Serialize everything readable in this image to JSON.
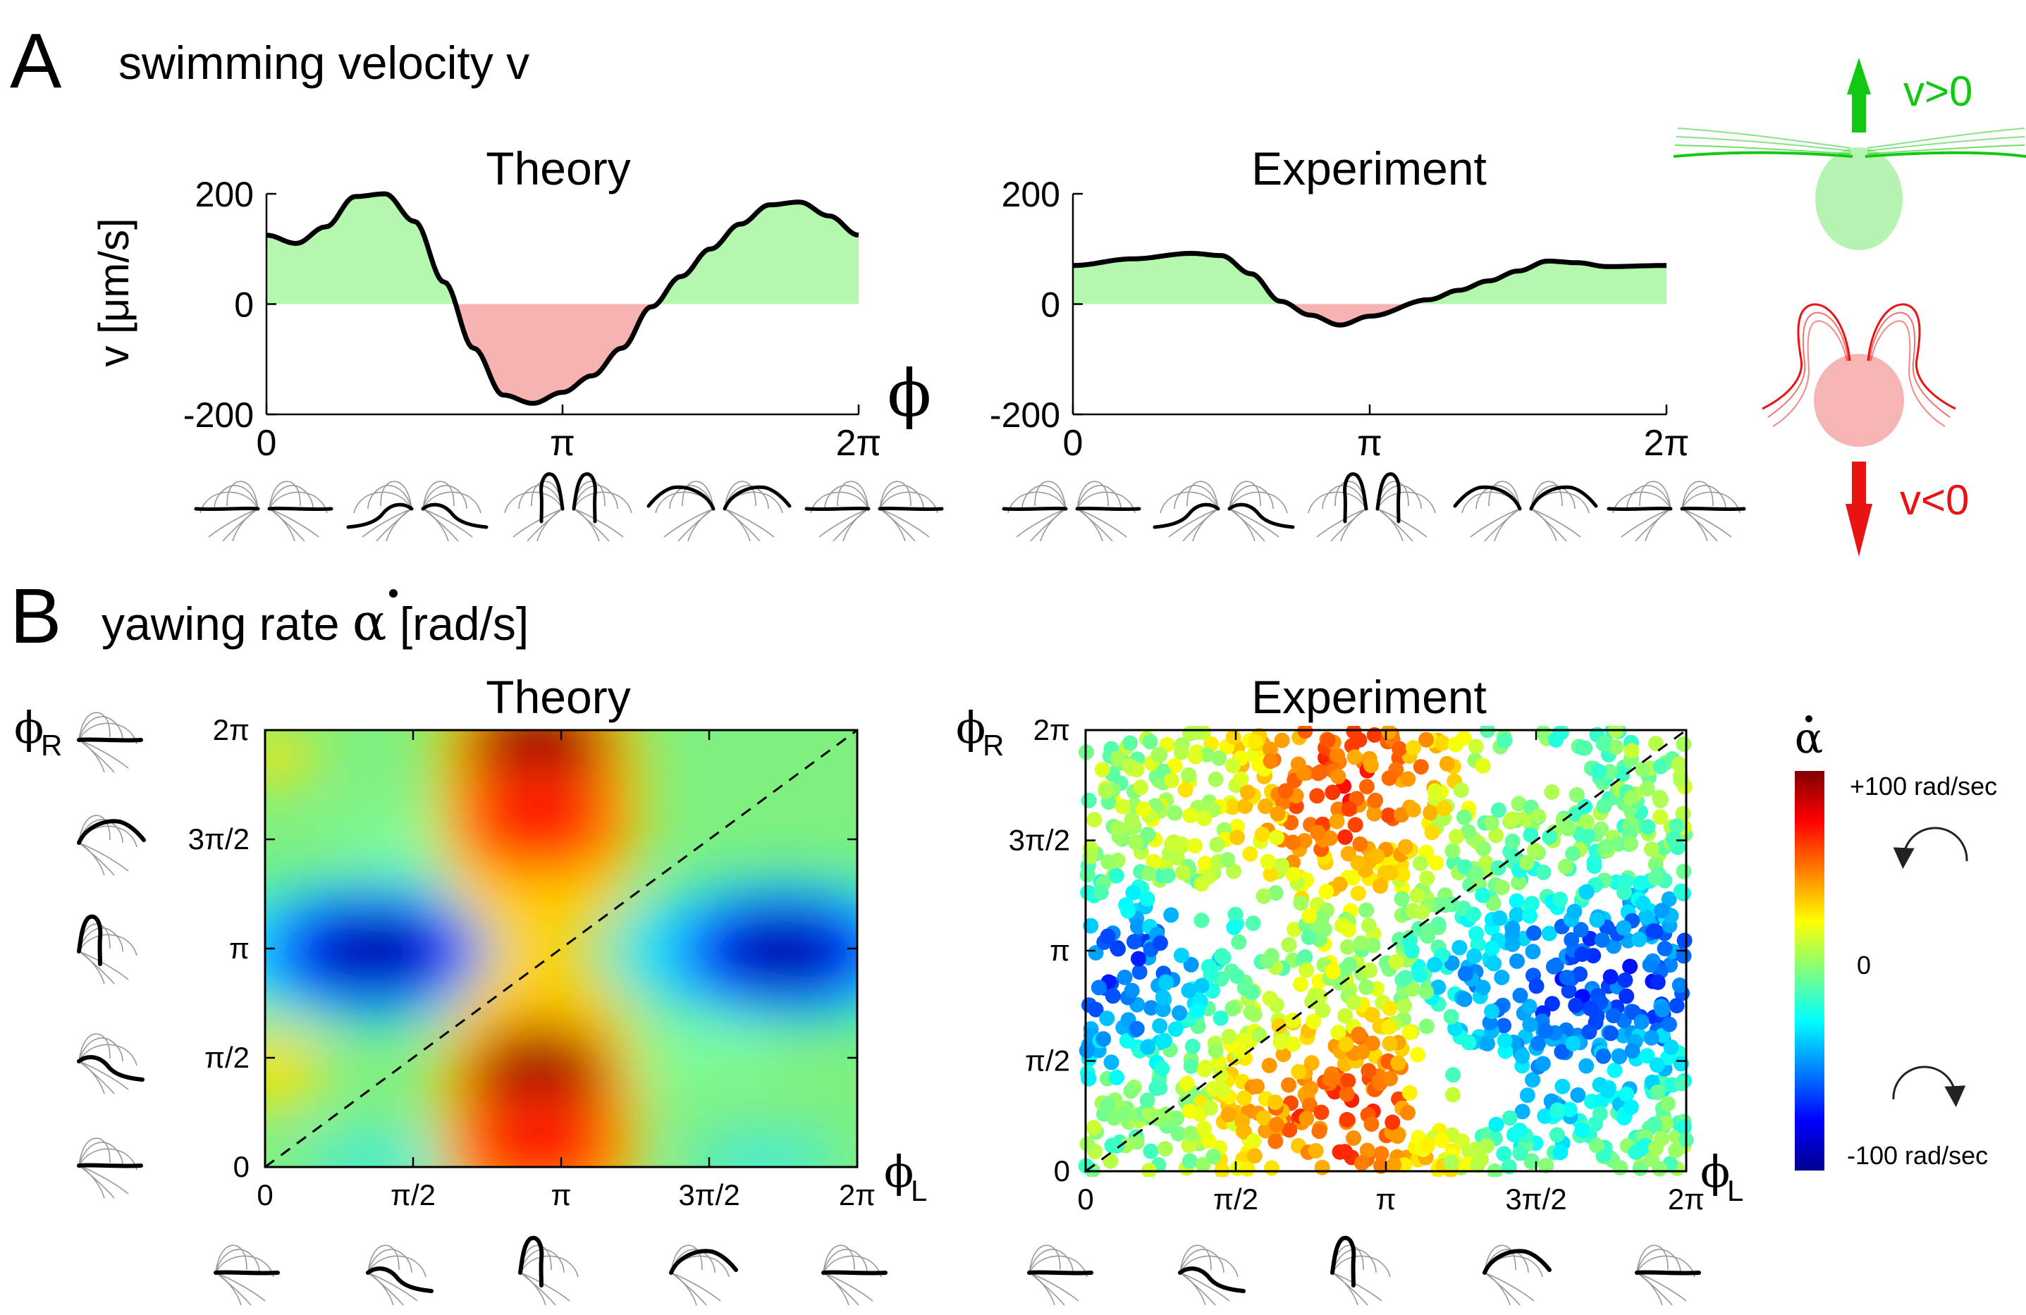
{
  "panel_a": {
    "letter": "A",
    "title": "swimming velocity v",
    "ylabel": "v [μm/s]",
    "phase_symbol": "ϕ",
    "legend_up": "v>0",
    "legend_down": "v<0"
  },
  "panel_b": {
    "letter": "B",
    "title_prefix": "yawing rate ",
    "alpha_symbol": "α",
    "title_suffix": " [rad/s]",
    "phi_main": "ϕ",
    "sub_r": "R",
    "sub_l": "L",
    "colorbar_top": "+100 rad/sec",
    "colorbar_mid": "0",
    "colorbar_bottom": "-100 rad/sec"
  },
  "colors": {
    "positive_fill": "#b4f7ae",
    "negative_fill": "#f7b2b2",
    "green_arrow": "#12c812",
    "red_arrow": "#e81414",
    "cell_green": "#b7f3b0",
    "cell_red": "#f6b5b5"
  },
  "chart_data": [
    {
      "type": "area",
      "title": "Theory",
      "xlabel": "ϕ",
      "ylabel": "v [μm/s]",
      "xlim": [
        0,
        6.2832
      ],
      "ylim": [
        -200,
        200
      ],
      "xticks": [
        0,
        3.1416,
        6.2832
      ],
      "xtick_labels": [
        "0",
        "π",
        "2π"
      ],
      "yticks": [
        200,
        0,
        -200
      ],
      "ytick_labels": [
        "200",
        "0",
        "-200"
      ],
      "x": [
        0,
        0.314,
        0.628,
        0.942,
        1.257,
        1.571,
        1.885,
        2.199,
        2.513,
        2.827,
        3.142,
        3.456,
        3.77,
        4.084,
        4.398,
        4.712,
        5.027,
        5.341,
        5.655,
        5.969,
        6.283
      ],
      "y": [
        125,
        110,
        140,
        195,
        200,
        150,
        40,
        -80,
        -165,
        -180,
        -160,
        -130,
        -80,
        -5,
        50,
        100,
        145,
        180,
        185,
        160,
        125
      ]
    },
    {
      "type": "area",
      "title": "Experiment",
      "xlabel": "",
      "ylabel": "",
      "xlim": [
        0,
        6.2832
      ],
      "ylim": [
        -200,
        200
      ],
      "xticks": [
        0,
        3.1416,
        6.2832
      ],
      "xtick_labels": [
        "0",
        "π",
        "2π"
      ],
      "yticks": [
        200,
        0,
        -200
      ],
      "ytick_labels": [
        "200",
        "0",
        "-200"
      ],
      "x": [
        0,
        0.628,
        1.257,
        1.571,
        1.885,
        2.199,
        2.513,
        2.827,
        3.142,
        3.77,
        4.084,
        4.398,
        4.712,
        5.027,
        5.341,
        5.655,
        6.283
      ],
      "y": [
        70,
        82,
        92,
        88,
        55,
        5,
        -20,
        -38,
        -22,
        8,
        25,
        42,
        60,
        78,
        75,
        68,
        70
      ]
    },
    {
      "type": "heatmap",
      "title": "Theory",
      "xlabel": "ϕL",
      "ylabel": "ϕR",
      "xlim": [
        0,
        6.2832
      ],
      "ylim": [
        0,
        6.2832
      ],
      "xtick_labels": [
        "0",
        "π/2",
        "π",
        "3π/2",
        "2π"
      ],
      "ytick_labels": [
        "0",
        "π/2",
        "π",
        "3π/2",
        "2π"
      ],
      "value_range": [
        -100,
        100
      ],
      "features": [
        {
          "label": "peak",
          "phiL": 2.9,
          "phiR": 6.0,
          "value": 100
        },
        {
          "label": "peak",
          "phiL": 2.9,
          "phiR": 5.0,
          "value": 75
        },
        {
          "label": "peak",
          "phiL": 2.9,
          "phiR": 1.2,
          "value": 100
        },
        {
          "label": "peak",
          "phiL": 2.9,
          "phiR": 0.3,
          "value": 75
        },
        {
          "label": "trough",
          "phiL": 1.15,
          "phiR": 3.1,
          "value": -95
        },
        {
          "label": "trough",
          "phiL": 5.5,
          "phiR": 3.1,
          "value": -95
        }
      ],
      "diagonal": "dashed line from (0,0) to (2π,2π)"
    },
    {
      "type": "scatter",
      "title": "Experiment",
      "xlabel": "ϕL",
      "ylabel": "ϕR",
      "xlim": [
        0,
        6.2832
      ],
      "ylim": [
        0,
        6.2832
      ],
      "xtick_labels": [
        "0",
        "π/2",
        "π",
        "3π/2",
        "2π"
      ],
      "ytick_labels": [
        "0",
        "π/2",
        "π",
        "3π/2",
        "2π"
      ],
      "value_range": [
        -100,
        100
      ],
      "clusters": [
        {
          "phiL": 2.8,
          "phiR": 5.2,
          "value": 80
        },
        {
          "phiL": 2.7,
          "phiR": 1.2,
          "value": 80
        },
        {
          "phiL": 0.6,
          "phiR": 2.9,
          "value": -75
        },
        {
          "phiL": 5.0,
          "phiR": 2.6,
          "value": -80
        },
        {
          "phiL": 4.6,
          "phiR": 1.6,
          "value": -40
        },
        {
          "phiL": 1.3,
          "phiR": 4.6,
          "value": 20
        },
        {
          "phiL": 4.2,
          "phiR": 4.6,
          "value": -5
        },
        {
          "phiL": 2.0,
          "phiR": 2.2,
          "value": 15
        }
      ],
      "diagonal": "dashed line from (0,0) to (2π,2π)"
    }
  ]
}
